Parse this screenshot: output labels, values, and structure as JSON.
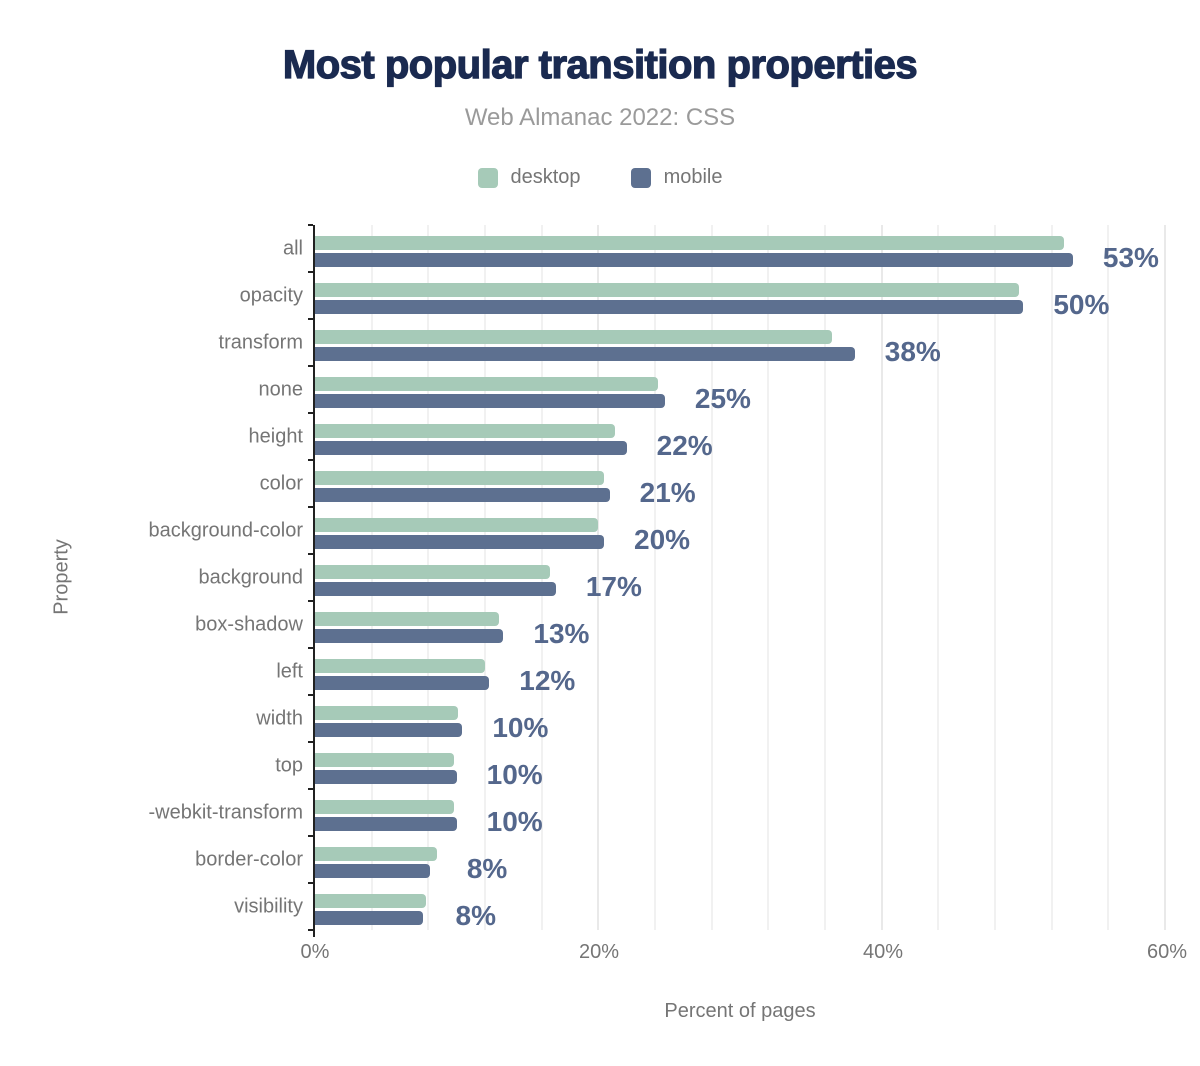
{
  "header": {
    "title": "Most popular transition properties",
    "subtitle": "Web Almanac 2022: CSS"
  },
  "legend": {
    "items": [
      {
        "label": "desktop",
        "color": "#a6cab8"
      },
      {
        "label": "mobile",
        "color": "#5d7090"
      }
    ]
  },
  "chart_data": {
    "type": "bar",
    "orientation": "horizontal",
    "title": "Most popular transition properties",
    "subtitle": "Web Almanac 2022: CSS",
    "xlabel": "Percent of pages",
    "ylabel": "Property",
    "xlim": [
      0,
      60
    ],
    "x_ticks": [
      {
        "value": 0,
        "label": "0%"
      },
      {
        "value": 20,
        "label": "20%"
      },
      {
        "value": 40,
        "label": "40%"
      },
      {
        "value": 60,
        "label": "60%"
      }
    ],
    "grid": {
      "minor_every": 4,
      "major_every": 20
    },
    "legend_position": "top",
    "categories": [
      "all",
      "opacity",
      "transform",
      "none",
      "height",
      "color",
      "background-color",
      "background",
      "box-shadow",
      "left",
      "width",
      "top",
      "-webkit-transform",
      "border-color",
      "visibility"
    ],
    "series": [
      {
        "name": "desktop",
        "color": "#a6cab8",
        "values": [
          52.9,
          49.7,
          36.5,
          24.2,
          21.2,
          20.4,
          20.0,
          16.6,
          13.0,
          12.0,
          10.1,
          9.8,
          9.8,
          8.6,
          7.8
        ]
      },
      {
        "name": "mobile",
        "color": "#5d7090",
        "values": [
          53.5,
          50.0,
          38.1,
          24.7,
          22.0,
          20.8,
          20.4,
          17.0,
          13.3,
          12.3,
          10.4,
          10.0,
          10.0,
          8.1,
          7.6
        ]
      }
    ],
    "bar_labels": [
      "53%",
      "50%",
      "38%",
      "25%",
      "22%",
      "21%",
      "20%",
      "17%",
      "13%",
      "12%",
      "10%",
      "10%",
      "10%",
      "8%",
      "8%"
    ]
  },
  "colors": {
    "title": "#1a2a50",
    "subtitle": "#9a9a9a",
    "axis_text": "#757575",
    "value_label": "#54678c",
    "axis_line": "#212121",
    "grid_minor": "#f1f1f1",
    "grid_major": "#e9e9e9",
    "background": "#ffffff"
  }
}
